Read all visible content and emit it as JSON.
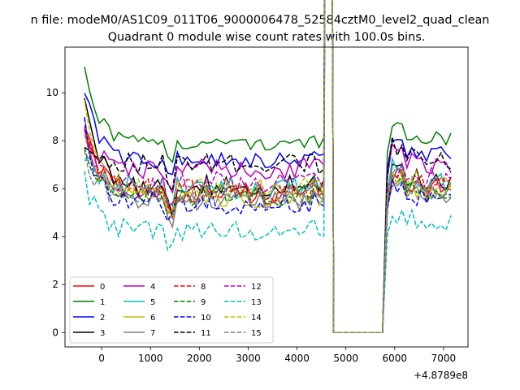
{
  "chart_data": {
    "type": "line",
    "suptitle": "n file: modeM0/AS1C09_011T06_9000006478_52584cztM0_level2_quad_clean",
    "title": "Quadrant 0 module wise count rates with 100.0s bins.",
    "xlabel": "",
    "ylabel": "",
    "x_offset_label": "+4.8789e8",
    "xlim": [
      -750,
      7500
    ],
    "ylim": [
      -0.6,
      11.9
    ],
    "xticks": [
      0,
      1000,
      2000,
      3000,
      4000,
      5000,
      6000,
      7000
    ],
    "yticks": [
      0,
      2,
      4,
      6,
      8,
      10
    ],
    "grid": false,
    "legend_position": "lower-left",
    "legend_columns": 4,
    "series": [
      {
        "name": "0",
        "color": "#ff0000",
        "dash": "solid",
        "level": 5.8,
        "amp": 0.45,
        "start": 9.0
      },
      {
        "name": "1",
        "color": "#008000",
        "dash": "solid",
        "level": 7.9,
        "amp": 0.3,
        "start": 11.3
      },
      {
        "name": "2",
        "color": "#0000ff",
        "dash": "solid",
        "level": 7.2,
        "amp": 0.35,
        "start": 10.2
      },
      {
        "name": "3",
        "color": "#000000",
        "dash": "solid",
        "level": 6.1,
        "amp": 0.45,
        "start": 10.0
      },
      {
        "name": "4",
        "color": "#bf00bf",
        "dash": "solid",
        "level": 6.8,
        "amp": 0.45,
        "start": 8.6
      },
      {
        "name": "5",
        "color": "#00bfbf",
        "dash": "solid",
        "level": 6.0,
        "amp": 0.5,
        "start": 7.3
      },
      {
        "name": "6",
        "color": "#bfbf00",
        "dash": "solid",
        "level": 5.6,
        "amp": 0.4,
        "start": 8.3
      },
      {
        "name": "7",
        "color": "#808080",
        "dash": "solid",
        "level": 5.5,
        "amp": 0.4,
        "start": 9.0
      },
      {
        "name": "8",
        "color": "#ff0000",
        "dash": "dashed",
        "level": 5.9,
        "amp": 0.5,
        "start": 8.4
      },
      {
        "name": "9",
        "color": "#008000",
        "dash": "dashed",
        "level": 5.7,
        "amp": 0.45,
        "start": 7.6
      },
      {
        "name": "10",
        "color": "#0000ff",
        "dash": "dashed",
        "level": 5.4,
        "amp": 0.45,
        "start": 8.8
      },
      {
        "name": "11",
        "color": "#000000",
        "dash": "dashed",
        "level": 7.0,
        "amp": 0.45,
        "start": 7.5
      },
      {
        "name": "12",
        "color": "#bf00bf",
        "dash": "dashed",
        "level": 6.2,
        "amp": 0.5,
        "start": 8.2
      },
      {
        "name": "13",
        "color": "#00bfbf",
        "dash": "dashed",
        "level": 4.3,
        "amp": 0.45,
        "start": 6.4
      },
      {
        "name": "14",
        "color": "#bfbf00",
        "dash": "dashed",
        "level": 6.0,
        "amp": 0.45,
        "start": 9.3
      },
      {
        "name": "15",
        "color": "#808080",
        "dash": "dashed",
        "level": 5.8,
        "amp": 0.5,
        "start": 7.1
      }
    ]
  }
}
